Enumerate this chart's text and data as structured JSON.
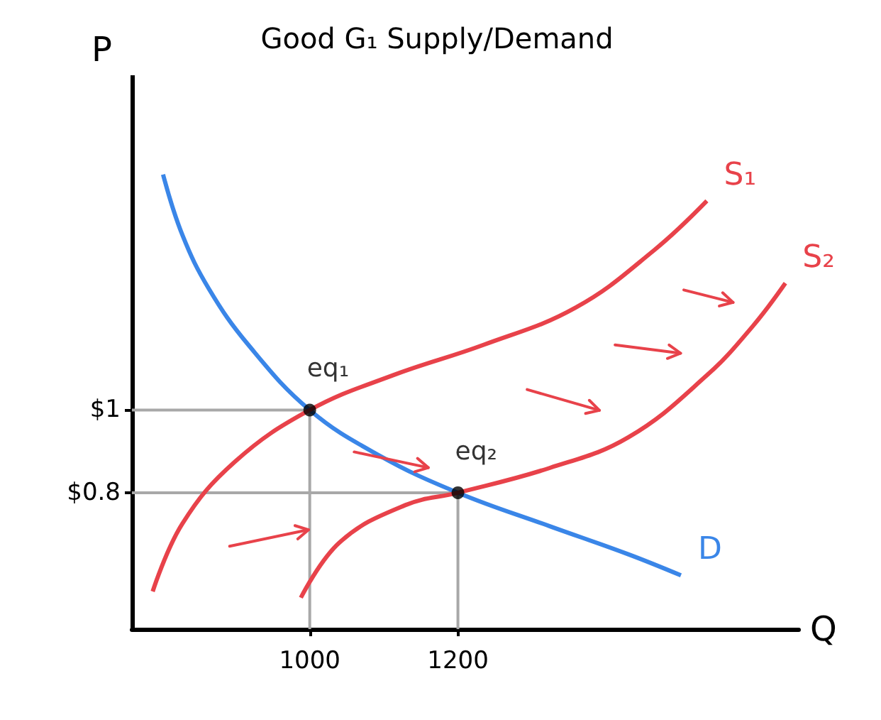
{
  "chart_data": {
    "type": "line",
    "title": "Good G₁ Supply/Demand",
    "xlabel": "Q",
    "ylabel": "P",
    "xlim": [
      760,
      1660
    ],
    "ylim": [
      0.47,
      1.81
    ],
    "xticks": [
      1000,
      1200
    ],
    "yticks": [
      {
        "value": 1,
        "label": "$1"
      },
      {
        "value": 0.8,
        "label": "$0.8"
      }
    ],
    "marker": "none",
    "line_style": "solid",
    "series": [
      {
        "name": "D",
        "color": "#3a86e8",
        "x": [
          802,
          828,
          864,
          917,
          1000,
          1094,
          1200,
          1324,
          1430,
          1501
        ],
        "values": [
          1.57,
          1.424,
          1.293,
          1.158,
          1.0,
          0.89,
          0.8,
          0.719,
          0.651,
          0.6
        ]
      },
      {
        "name": "S₁",
        "color": "#e8424a",
        "x": [
          788,
          828,
          899,
          1000,
          1112,
          1235,
          1359,
          1465,
          1536
        ],
        "values": [
          0.561,
          0.725,
          0.875,
          1.0,
          1.084,
          1.158,
          1.248,
          1.387,
          1.506
        ]
      },
      {
        "name": "S₂",
        "color": "#e8424a",
        "x": [
          988,
          1041,
          1129,
          1200,
          1324,
          1430,
          1536,
          1598,
          1642
        ],
        "values": [
          0.546,
          0.681,
          0.77,
          0.8,
          0.86,
          0.934,
          1.084,
          1.203,
          1.307
        ]
      },
      {
        "color": "#a8a8a8",
        "x": [
          760,
          1000,
          1000
        ],
        "values": [
          1,
          1,
          0.47
        ]
      },
      {
        "color": "#a8a8a8",
        "x": [
          760,
          1200,
          1200
        ],
        "values": [
          0.8,
          0.8,
          0.47
        ]
      },
      {
        "type": "scatter",
        "marker": "circle",
        "color": "#000000",
        "x": [
          1000,
          1200
        ],
        "values": [
          1,
          0.8
        ]
      }
    ],
    "annotations": [
      {
        "text": "eq₁",
        "x": 1000,
        "y": 1
      },
      {
        "text": "eq₂",
        "x": 1200,
        "y": 0.8
      }
    ]
  }
}
